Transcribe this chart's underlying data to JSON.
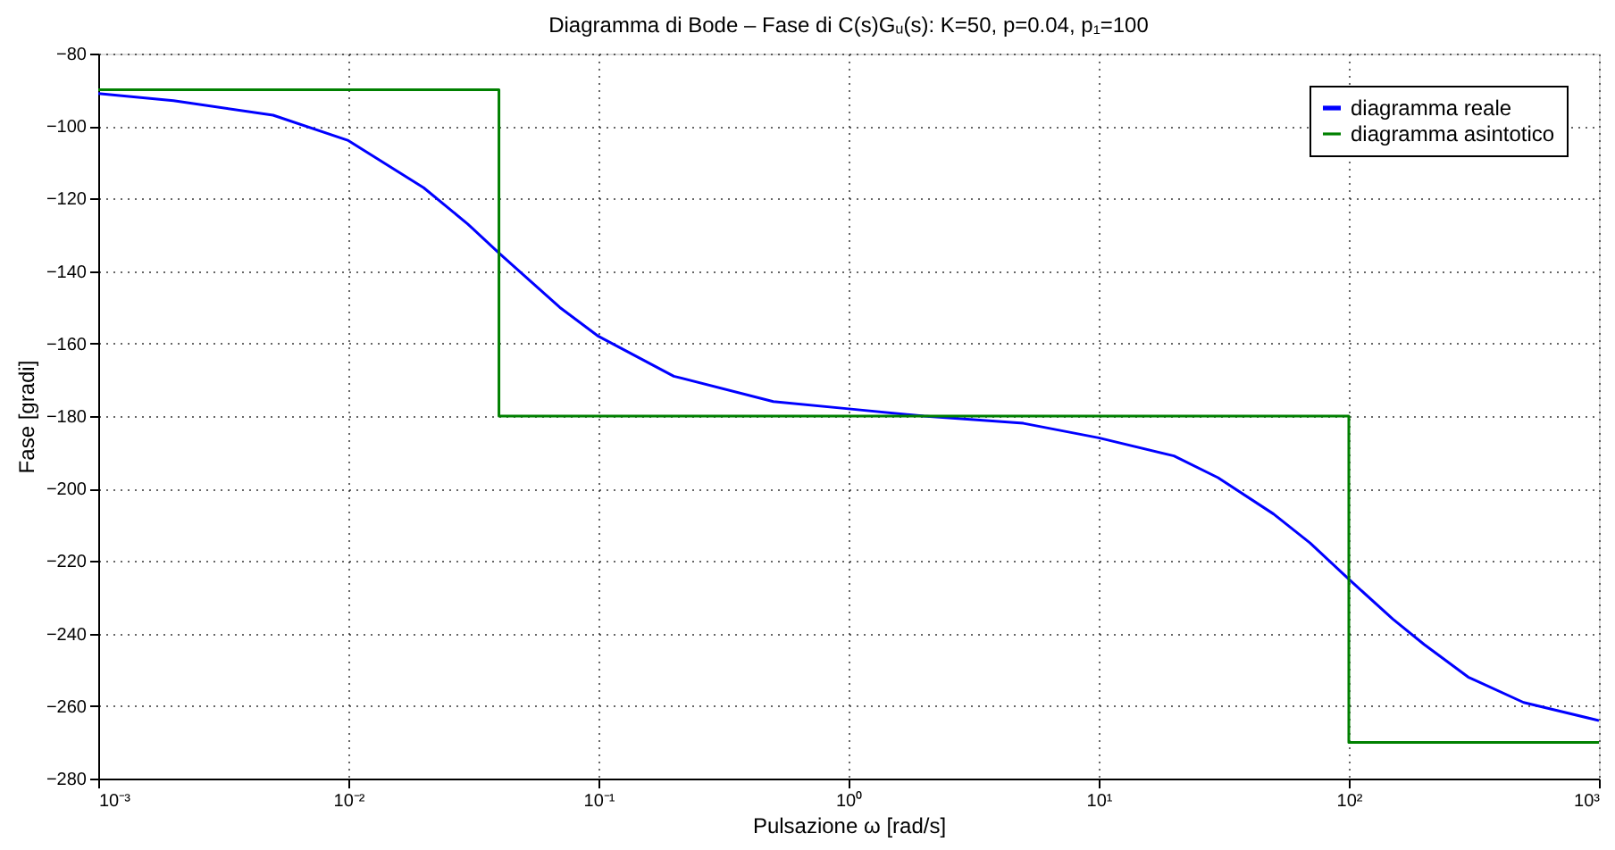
{
  "chart_data": {
    "type": "line",
    "title": "Diagramma di Bode – Fase di C(s)Gᵤ(s): K=50, p=0.04, p₁=100",
    "xlabel": "Pulsazione ω [rad/s]",
    "ylabel": "Fase [gradi]",
    "log": "x",
    "xlim": [
      0.001,
      1000
    ],
    "xticks": [
      {
        "value": 0.001,
        "label": "10⁻³"
      },
      {
        "value": 0.01,
        "label": "10⁻²"
      },
      {
        "value": 0.1,
        "label": "10⁻¹"
      },
      {
        "value": 1,
        "label": "10⁰"
      },
      {
        "value": 10,
        "label": "10¹"
      },
      {
        "value": 100,
        "label": "10²"
      },
      {
        "value": 1000,
        "label": "10³"
      }
    ],
    "ylim": [
      -280,
      -80
    ],
    "yticks": [
      -280,
      -260,
      -240,
      -220,
      -200,
      -180,
      -160,
      -140,
      -120,
      -100,
      -80
    ],
    "grid": true,
    "legend": "top right",
    "marker": "none",
    "line_style": "solid",
    "series": [
      {
        "name": "diagramma reale",
        "color": "#0000ff",
        "x": [
          0.001,
          0.002,
          0.005,
          0.01,
          0.02,
          0.03,
          0.04,
          0.05,
          0.07,
          0.1,
          0.2,
          0.5,
          1,
          2,
          5,
          10,
          20,
          30,
          50,
          70,
          100,
          150,
          200,
          300,
          500,
          1000
        ],
        "values": [
          -91,
          -93,
          -97,
          -104,
          -117,
          -127,
          -135,
          -141,
          -150,
          -158,
          -169,
          -176,
          -178,
          -180,
          -182,
          -186,
          -191,
          -197,
          -207,
          -215,
          -225,
          -236,
          -243,
          -252,
          -259,
          -264
        ]
      },
      {
        "name": "diagramma asintotico",
        "color": "#008000",
        "x": [
          0.001,
          0.04,
          0.04,
          100,
          100,
          1000
        ],
        "values": [
          -90,
          -90,
          -180,
          -180,
          -270,
          -270
        ]
      }
    ]
  }
}
